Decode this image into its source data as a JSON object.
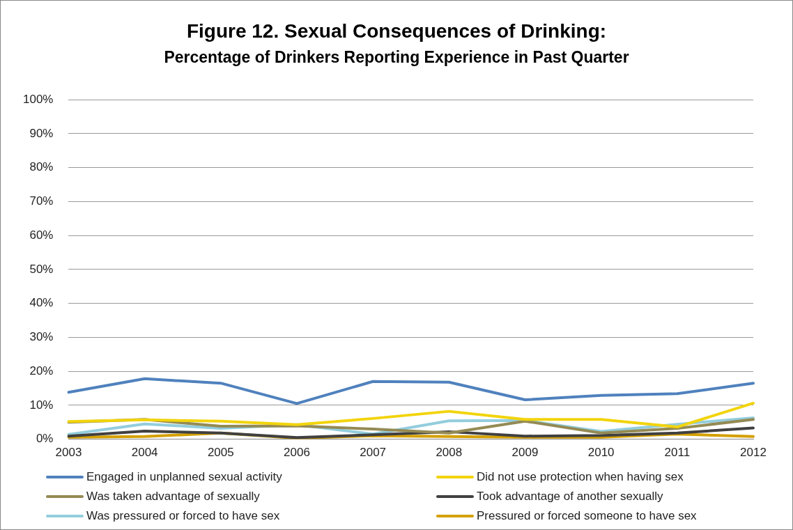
{
  "chart_data": {
    "type": "line",
    "title": "Figure 12.  Sexual Consequences of Drinking:",
    "subtitle": "Percentage of Drinkers Reporting Experience in Past Quarter",
    "categories": [
      "2003",
      "2004",
      "2005",
      "2006",
      "2007",
      "2008",
      "2009",
      "2010",
      "2011",
      "2012"
    ],
    "ylim": [
      0,
      100
    ],
    "yticks": [
      {
        "value": 0,
        "label": "0%"
      },
      {
        "value": 10,
        "label": "10%"
      },
      {
        "value": 20,
        "label": "20%"
      },
      {
        "value": 30,
        "label": "30%"
      },
      {
        "value": 40,
        "label": "40%"
      },
      {
        "value": 50,
        "label": "50%"
      },
      {
        "value": 60,
        "label": "60%"
      },
      {
        "value": 70,
        "label": "70%"
      },
      {
        "value": 80,
        "label": "80%"
      },
      {
        "value": 90,
        "label": "90%"
      },
      {
        "value": 100,
        "label": "100%"
      }
    ],
    "grid": "y",
    "legend": "bottom",
    "marker": "none",
    "line_style": "solid",
    "series": [
      {
        "name": "Engaged in unplanned sexual activity",
        "color": "#4f81bd",
        "values": [
          13.8,
          17.8,
          16.5,
          10.5,
          17,
          16.8,
          11.6,
          12.9,
          13.4,
          16.5
        ]
      },
      {
        "name": "Did not use protection when having sex",
        "color": "#f2d40c",
        "values": [
          5.2,
          5.7,
          5.3,
          4.3,
          6.1,
          8.2,
          5.8,
          5.8,
          3.6,
          10.6
        ]
      },
      {
        "name": "Was taken advantage of sexually",
        "color": "#948a54",
        "values": [
          5,
          5.8,
          3.8,
          3.9,
          3,
          1.8,
          5.3,
          1.8,
          3.2,
          5.8
        ]
      },
      {
        "name": "Took advantage of another sexually",
        "color": "#404040",
        "values": [
          0.9,
          2.4,
          1.8,
          0.5,
          1.3,
          2.2,
          0.9,
          1.1,
          1.8,
          3.3
        ]
      },
      {
        "name": "Was pressured or forced to have sex",
        "color": "#93cddd",
        "values": [
          1.4,
          4.5,
          3.2,
          4.3,
          1.5,
          5.4,
          5.5,
          2.3,
          4.4,
          6.3
        ]
      },
      {
        "name": "Pressured or forced someone to have sex",
        "color": "#d4a000",
        "values": [
          0.6,
          0.8,
          1.8,
          0.3,
          1.0,
          0.8,
          0.6,
          0.6,
          1.5,
          0.8
        ]
      }
    ]
  }
}
